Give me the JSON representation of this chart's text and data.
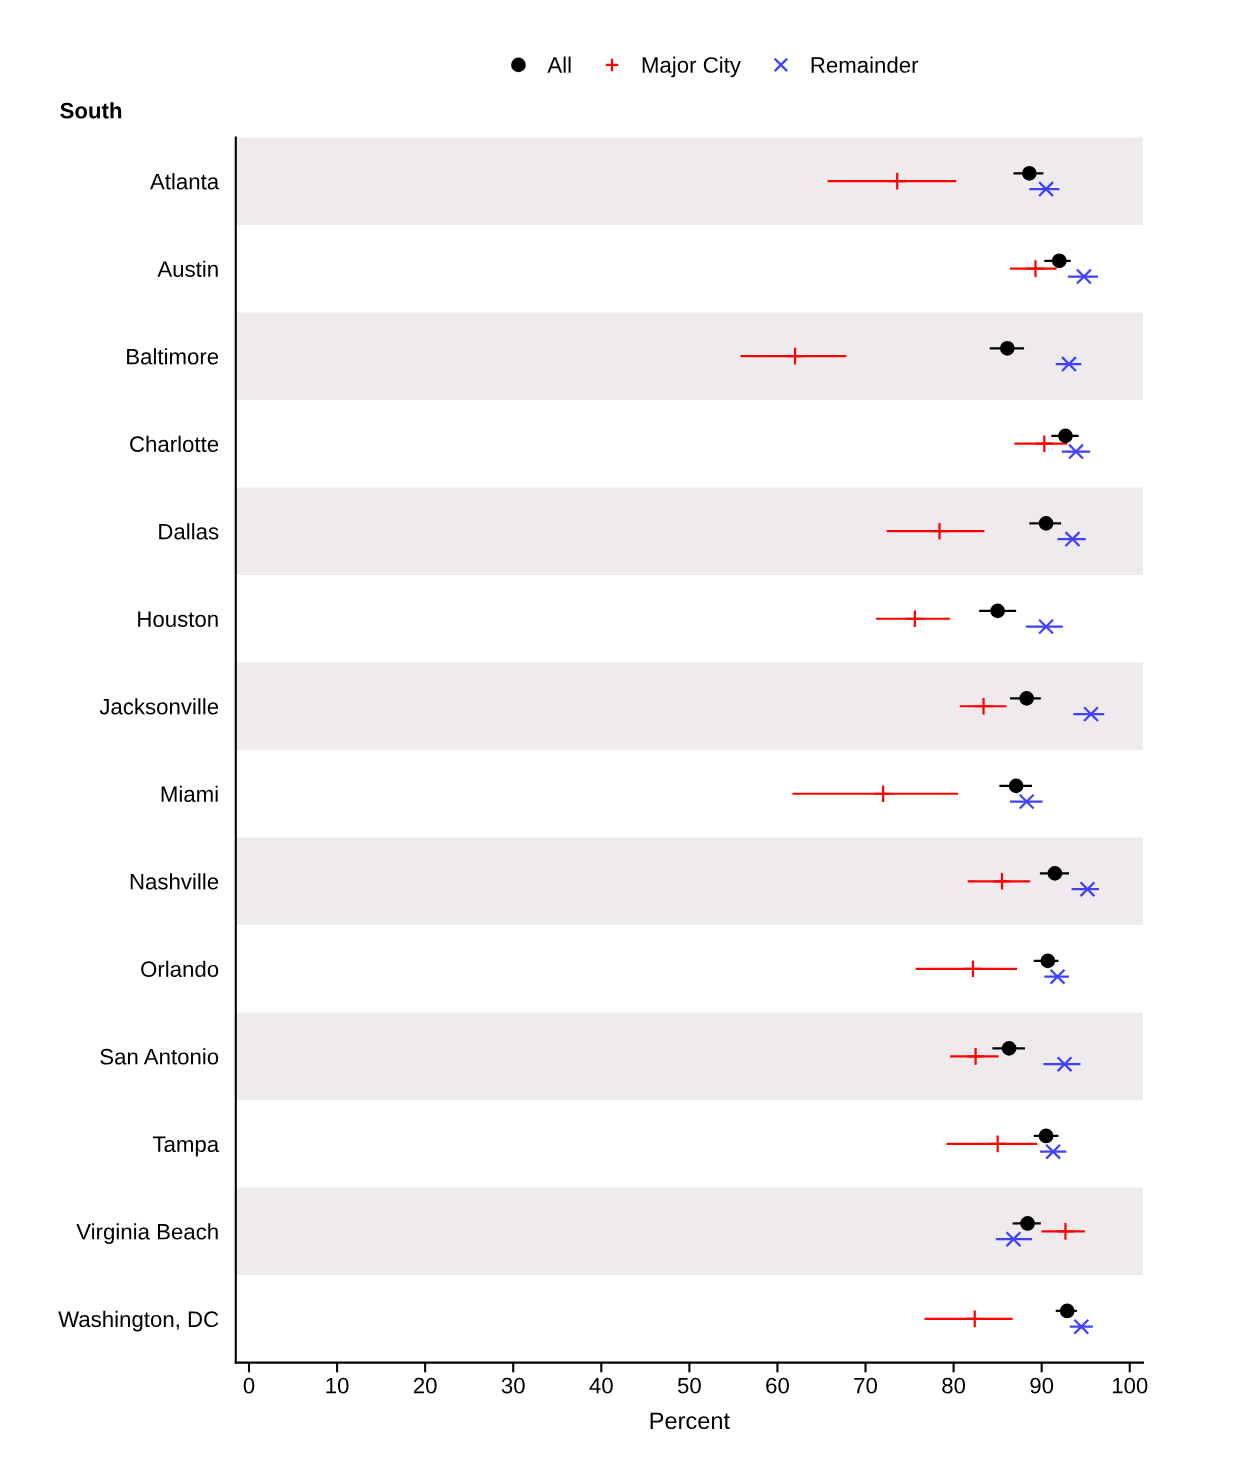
{
  "chart_data": {
    "type": "scatter",
    "orientation": "horizontal",
    "title": "South",
    "xlabel": "Percent",
    "categories": [
      "Atlanta",
      "Austin",
      "Baltimore",
      "Charlotte",
      "Dallas",
      "Houston",
      "Jacksonville",
      "Miami",
      "Nashville",
      "Orlando",
      "San Antonio",
      "Tampa",
      "Virginia Beach",
      "Washington, DC"
    ],
    "xlim": [
      -1.5,
      101.5
    ],
    "xticks": [
      0,
      10,
      20,
      30,
      40,
      50,
      60,
      70,
      80,
      90,
      100
    ],
    "grid": false,
    "legend": "top",
    "series": [
      {
        "name": "All",
        "color": "#000000",
        "marker": "circle",
        "values": [
          88.6,
          92.0,
          86.1,
          92.7,
          90.5,
          85.0,
          88.3,
          87.1,
          91.5,
          90.7,
          86.3,
          90.5,
          88.4,
          92.9
        ],
        "errors": [
          [
            86.8,
            90.2
          ],
          [
            90.3,
            93.3
          ],
          [
            84.1,
            88.0
          ],
          [
            91.1,
            94.2
          ],
          [
            88.6,
            92.2
          ],
          [
            82.9,
            87.1
          ],
          [
            86.4,
            89.9
          ],
          [
            85.2,
            88.9
          ],
          [
            89.8,
            93.1
          ],
          [
            89.1,
            91.9
          ],
          [
            84.4,
            88.1
          ],
          [
            89.1,
            91.9
          ],
          [
            86.7,
            89.9
          ],
          [
            91.6,
            94.0
          ]
        ]
      },
      {
        "name": "Major City",
        "color": "#ff0000",
        "marker": "plus",
        "values": [
          73.6,
          89.3,
          62.0,
          90.3,
          78.4,
          75.6,
          83.4,
          72.0,
          85.5,
          82.2,
          82.5,
          85.0,
          92.7,
          82.4
        ],
        "errors": [
          [
            65.7,
            80.3
          ],
          [
            86.4,
            91.7
          ],
          [
            55.8,
            67.8
          ],
          [
            86.9,
            92.9
          ],
          [
            72.4,
            83.5
          ],
          [
            71.2,
            79.6
          ],
          [
            80.7,
            86.0
          ],
          [
            61.7,
            80.5
          ],
          [
            81.6,
            88.7
          ],
          [
            75.7,
            87.2
          ],
          [
            79.6,
            85.1
          ],
          [
            79.2,
            89.5
          ],
          [
            90.0,
            94.9
          ],
          [
            76.7,
            86.7
          ]
        ]
      },
      {
        "name": "Remainder",
        "color": "#4040ff",
        "marker": "cross",
        "values": [
          90.5,
          94.8,
          93.1,
          93.9,
          93.5,
          90.5,
          95.6,
          88.3,
          95.2,
          91.8,
          92.6,
          91.3,
          86.8,
          94.5
        ],
        "errors": [
          [
            88.6,
            92.0
          ],
          [
            93.0,
            96.4
          ],
          [
            91.6,
            94.5
          ],
          [
            92.3,
            95.5
          ],
          [
            91.8,
            95.0
          ],
          [
            88.2,
            92.4
          ],
          [
            93.6,
            97.1
          ],
          [
            86.4,
            90.1
          ],
          [
            93.4,
            96.5
          ],
          [
            90.3,
            93.1
          ],
          [
            90.2,
            94.4
          ],
          [
            89.8,
            92.8
          ],
          [
            84.8,
            88.9
          ],
          [
            93.2,
            95.8
          ]
        ]
      }
    ]
  }
}
